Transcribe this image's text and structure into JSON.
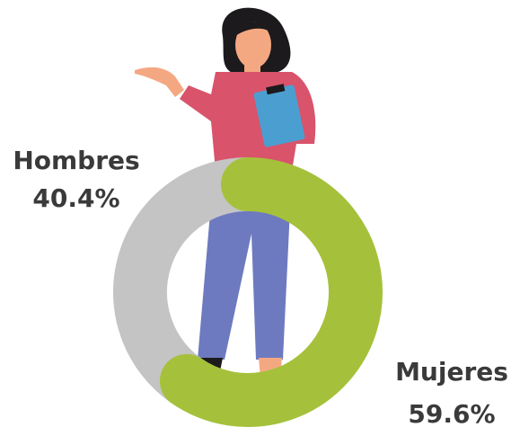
{
  "chart_data": {
    "type": "donut",
    "categories": [
      "Mujeres",
      "Hombres"
    ],
    "values": [
      59.6,
      40.4
    ],
    "value_labels": [
      "59.6%",
      "40.4%"
    ],
    "colors": [
      "#a5c13b",
      "#c4c4c4"
    ]
  }
}
